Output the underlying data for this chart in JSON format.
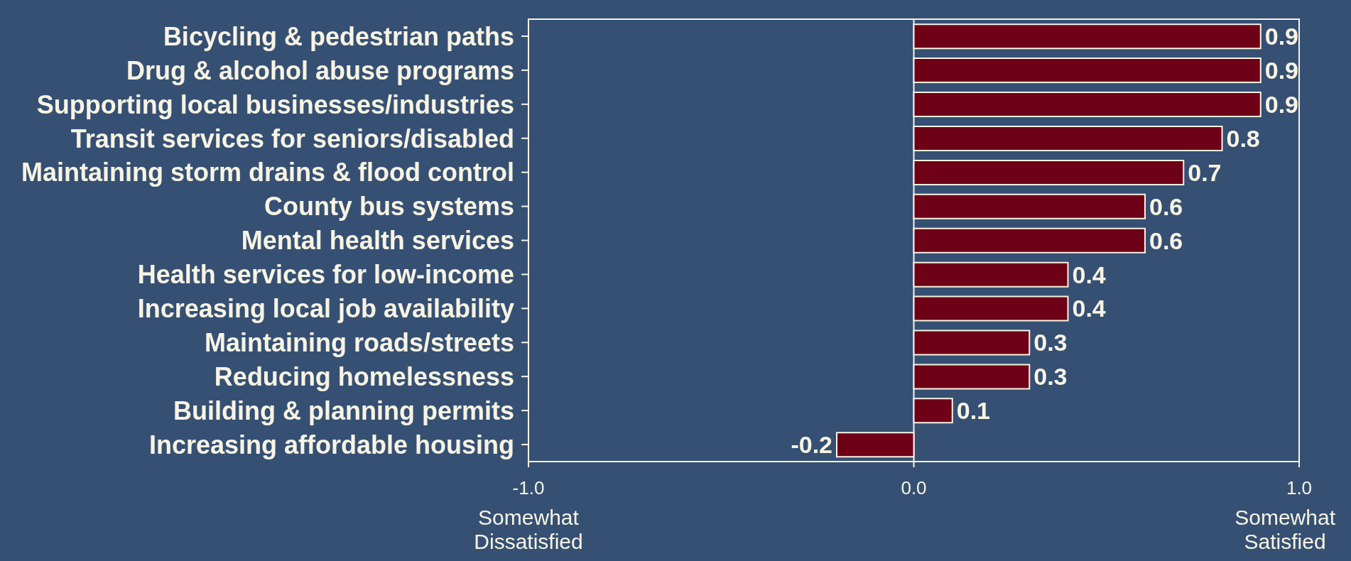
{
  "chart_data": {
    "type": "bar",
    "orientation": "horizontal",
    "categories": [
      "Bicycling & pedestrian paths",
      "Drug & alcohol abuse programs",
      "Supporting local businesses/industries",
      "Transit services for seniors/disabled",
      "Maintaining storm drains & flood control",
      "County bus systems",
      "Mental health services",
      "Health services for low-income",
      "Increasing local job availability",
      "Maintaining roads/streets",
      "Reducing homelessness",
      "Building & planning permits",
      "Increasing affordable housing"
    ],
    "values": [
      0.9,
      0.9,
      0.9,
      0.8,
      0.7,
      0.6,
      0.6,
      0.4,
      0.4,
      0.3,
      0.3,
      0.1,
      -0.2
    ],
    "color": "#6e0018",
    "xlim": [
      -1,
      1
    ],
    "xticks": [
      {
        "value": -1,
        "label": "-1.0"
      },
      {
        "value": 0,
        "label": "0.0"
      },
      {
        "value": 1,
        "label": "1.0"
      }
    ],
    "grid": "x",
    "data_labels": true,
    "annotations": [
      "Somewhat Dissatisfied",
      "Somewhat Satisfied"
    ]
  }
}
